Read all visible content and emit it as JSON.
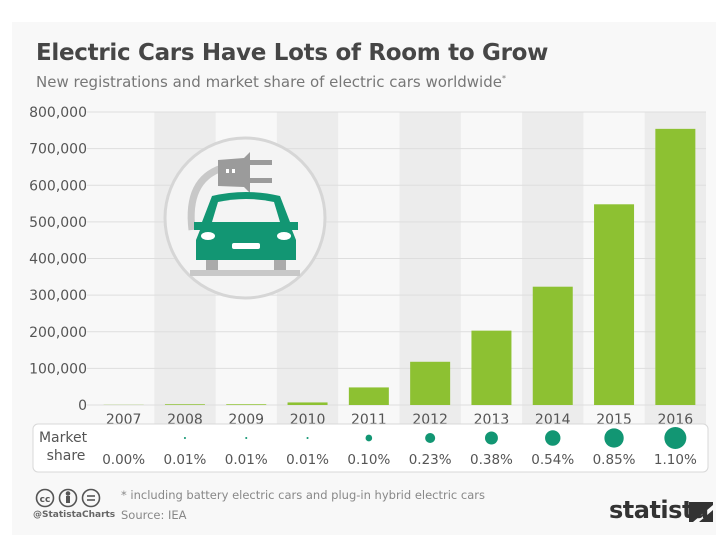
{
  "title": "Electric Cars Have Lots of Room to Grow",
  "subtitle": "New registrations and market share of electric cars worldwide",
  "subtitle_sup": "*",
  "chart_data": {
    "type": "bar",
    "title": "Electric Cars Have Lots of Room to Grow",
    "subtitle": "New registrations and market share of electric cars worldwide*",
    "categories": [
      "2007",
      "2008",
      "2009",
      "2010",
      "2011",
      "2012",
      "2013",
      "2014",
      "2015",
      "2016"
    ],
    "values": [
      500,
      2000,
      2000,
      7000,
      48000,
      118000,
      203000,
      323000,
      548000,
      754000
    ],
    "ylim": [
      0,
      800000
    ],
    "yticks": [
      "0",
      "100,000",
      "200,000",
      "300,000",
      "400,000",
      "500,000",
      "600,000",
      "700,000",
      "800,000"
    ],
    "ytick_values": [
      0,
      100000,
      200000,
      300000,
      400000,
      500000,
      600000,
      700000,
      800000
    ],
    "grid": true,
    "bar_color": "#8dc132",
    "market_share_label": [
      "Market",
      "share"
    ],
    "market_share": [
      0.0,
      0.01,
      0.01,
      0.01,
      0.1,
      0.23,
      0.38,
      0.54,
      0.85,
      1.1
    ],
    "market_share_labels": [
      "0.00%",
      "0.01%",
      "0.01%",
      "0.01%",
      "0.10%",
      "0.23%",
      "0.38%",
      "0.54%",
      "0.85%",
      "1.10%"
    ],
    "dot_color": "#129673"
  },
  "footer": {
    "note": "* including battery electric cars and plug-in hybrid electric cars",
    "source": "Source: IEA",
    "handle": "@StatistaCharts",
    "logo": "statista",
    "license_icons": [
      "cc-icon",
      "by-icon",
      "nd-icon"
    ]
  },
  "icon": "electric-car-plug-icon"
}
